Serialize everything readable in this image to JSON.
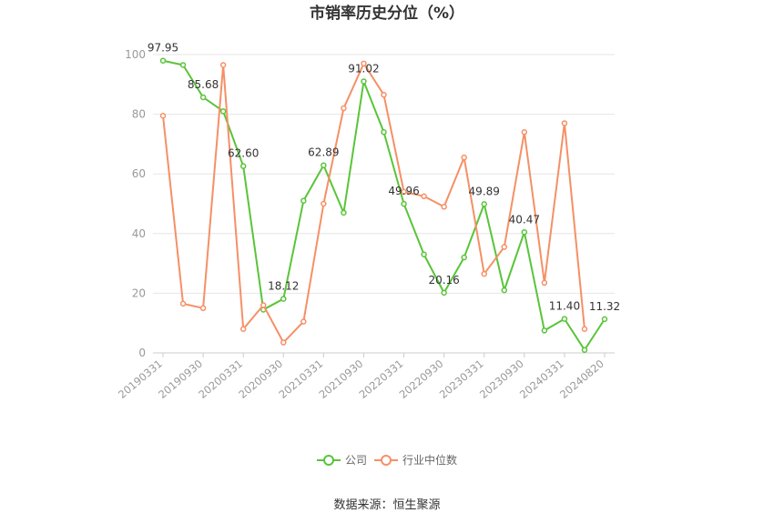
{
  "chart_data": {
    "type": "line",
    "title": "市销率历史分位（%）",
    "ylim": [
      0,
      100
    ],
    "yticks": [
      0,
      20,
      40,
      60,
      80,
      100
    ],
    "grid": true,
    "legend_position": "bottom",
    "x": [
      "20190331",
      "20190630",
      "20190930",
      "20191231",
      "20200331",
      "20200630",
      "20200930",
      "20201231",
      "20210331",
      "20210630",
      "20210930",
      "20211231",
      "20220331",
      "20220630",
      "20220930",
      "20221231",
      "20230331",
      "20230630",
      "20230930",
      "20231231",
      "20240331",
      "20240630",
      "20240820"
    ],
    "x_tick_labels": [
      "20190331",
      "20190930",
      "20200331",
      "20200930",
      "20210331",
      "20210930",
      "20220331",
      "20220930",
      "20230331",
      "20230930",
      "20240331",
      "20240820"
    ],
    "series": [
      {
        "name": "公司",
        "color": "#5ac43a",
        "values": [
          97.95,
          96.5,
          85.68,
          81.0,
          62.6,
          14.5,
          18.12,
          51.0,
          62.89,
          47.0,
          91.02,
          74.0,
          49.96,
          33.0,
          20.16,
          32.0,
          49.89,
          21.0,
          40.47,
          7.5,
          11.4,
          1.0,
          11.32
        ],
        "labels": {
          "0": "97.95",
          "2": "85.68",
          "4": "62.60",
          "6": "18.12",
          "8": "62.89",
          "10": "91.02",
          "12": "49.96",
          "14": "20.16",
          "16": "49.89",
          "18": "40.47",
          "20": "11.40",
          "22": "11.32"
        }
      },
      {
        "name": "行业中位数",
        "color": "#f59066",
        "values": [
          79.5,
          16.5,
          15.0,
          96.5,
          8.0,
          16.0,
          3.5,
          10.5,
          50.0,
          82.0,
          97.0,
          86.5,
          54.0,
          52.5,
          49.0,
          65.5,
          26.5,
          35.5,
          74.0,
          23.5,
          77.0,
          8.0,
          null
        ]
      }
    ]
  },
  "source_text": "数据来源：恒生聚源"
}
